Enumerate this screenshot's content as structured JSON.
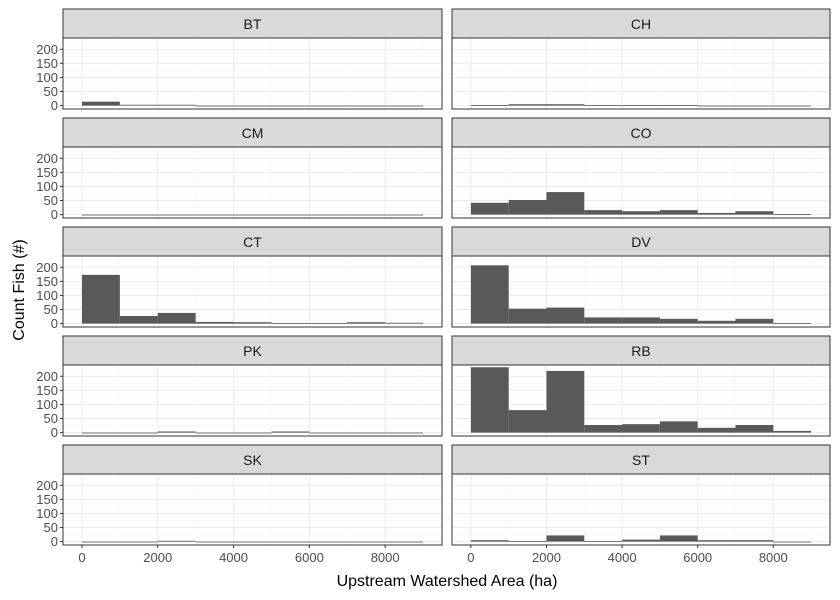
{
  "chart_data": {
    "type": "bar",
    "subtype": "faceted-histogram",
    "xlabel": "Upstream Watershed Area (ha)",
    "ylabel": "Count Fish (#)",
    "xlim": [
      -500,
      9500
    ],
    "ylim": [
      -12,
      240
    ],
    "x_ticks": [
      0,
      2000,
      4000,
      6000,
      8000
    ],
    "x_tick_labels": [
      "0",
      "2000",
      "4000",
      "6000",
      "8000"
    ],
    "y_ticks": [
      0,
      50,
      100,
      150,
      200
    ],
    "y_tick_labels": [
      "0",
      "50",
      "100",
      "150",
      "200"
    ],
    "bin_edges": [
      0,
      1000,
      2000,
      3000,
      4000,
      5000,
      6000,
      7000,
      8000,
      9000
    ],
    "grid": true,
    "theme": "bw",
    "facet_columns": 2,
    "colors": {
      "bar": "#595959",
      "strip_fill": "#d9d9d9",
      "panel_border": "#333333",
      "grid_major": "#ebebeb",
      "grid_minor": "#f5f5f5"
    },
    "panels": [
      {
        "species": "BT",
        "counts": [
          14,
          3,
          3,
          0,
          0,
          0,
          0,
          0,
          0
        ]
      },
      {
        "species": "CH",
        "counts": [
          2,
          5,
          5,
          2,
          2,
          2,
          0,
          0,
          0
        ]
      },
      {
        "species": "CM",
        "counts": [
          0,
          0,
          0,
          0,
          0,
          0,
          0,
          0,
          0
        ]
      },
      {
        "species": "CO",
        "counts": [
          42,
          52,
          80,
          16,
          12,
          16,
          6,
          12,
          2
        ]
      },
      {
        "species": "CT",
        "counts": [
          173,
          27,
          38,
          6,
          5,
          2,
          2,
          5,
          3
        ]
      },
      {
        "species": "DV",
        "counts": [
          207,
          53,
          57,
          22,
          22,
          17,
          10,
          17,
          2
        ]
      },
      {
        "species": "PK",
        "counts": [
          0,
          0,
          4,
          0,
          0,
          4,
          0,
          0,
          0
        ]
      },
      {
        "species": "RB",
        "counts": [
          232,
          80,
          219,
          27,
          30,
          40,
          17,
          27,
          6
        ]
      },
      {
        "species": "SK",
        "counts": [
          0,
          0,
          3,
          0,
          0,
          0,
          0,
          0,
          0
        ]
      },
      {
        "species": "ST",
        "counts": [
          5,
          2,
          22,
          2,
          7,
          22,
          5,
          5,
          0
        ]
      }
    ]
  }
}
